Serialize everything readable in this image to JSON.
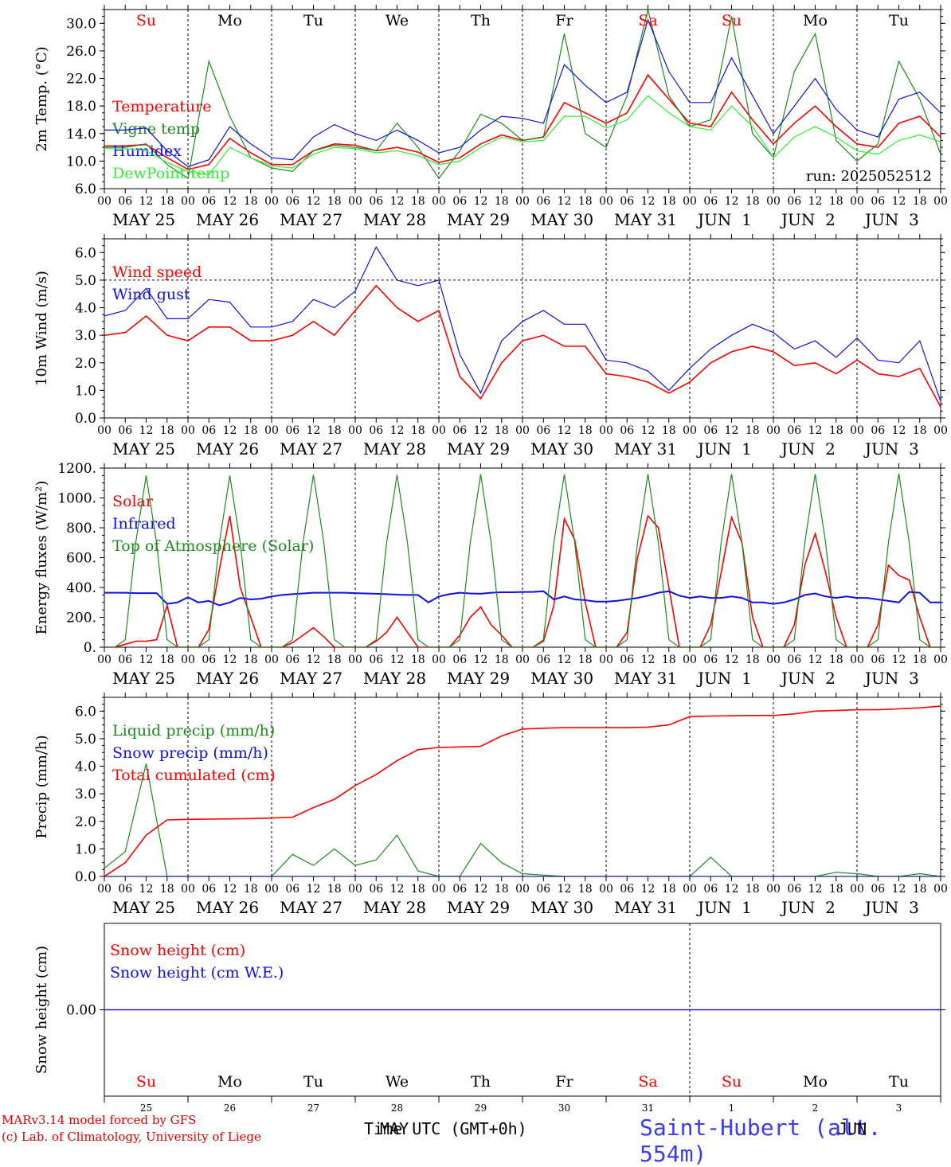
{
  "colors": {
    "red": "#ff0000",
    "darkgreen": "#1f8a1f",
    "blue": "#1010e6",
    "lightgreen": "#33ee33",
    "black": "#000000"
  },
  "days": {
    "weekday_top": [
      "Su",
      "Mo",
      "Tu",
      "We",
      "Th",
      "Fr",
      "Sa",
      "Su",
      "Mo",
      "Tu"
    ],
    "weekday_colors": [
      "red",
      "black",
      "black",
      "black",
      "black",
      "black",
      "red",
      "red",
      "black",
      "black"
    ],
    "date_labels": [
      "MAY 25",
      "MAY 26",
      "MAY 27",
      "MAY 28",
      "MAY 29",
      "MAY 30",
      "MAY 31",
      "JUN  1",
      "JUN  2",
      "JUN  3"
    ],
    "hour_ticks": [
      "00",
      "06",
      "12",
      "18"
    ],
    "hour_end": "00",
    "day_numbers": [
      "25",
      "26",
      "27",
      "28",
      "29",
      "30",
      "31",
      "1",
      "2",
      "3"
    ]
  },
  "chart_data": [
    {
      "type": "line",
      "ylabel": "2m Temp. (°C)",
      "ylim": [
        6.0,
        32.0
      ],
      "yticks": [
        "6.0",
        "10.0",
        "14.0",
        "18.0",
        "22.0",
        "26.0",
        "30.0"
      ],
      "run_label": "run: 2025052512",
      "x_hours": [
        0,
        6,
        12,
        18,
        24,
        30,
        36,
        42,
        48,
        54,
        60,
        66,
        72,
        78,
        84,
        90,
        96,
        102,
        108,
        114,
        120,
        126,
        132,
        138,
        144,
        150,
        156,
        162,
        168,
        174,
        180,
        186,
        192,
        198,
        204,
        210,
        216,
        222,
        228,
        234,
        240
      ],
      "series": [
        {
          "name": "Temperature",
          "color": "red",
          "values": [
            12.2,
            12.2,
            12.4,
            10.5,
            8.8,
            9.5,
            13.3,
            11.2,
            9.5,
            9.5,
            11.5,
            12.5,
            12.3,
            11.5,
            12.0,
            11.3,
            9.8,
            10.5,
            12.5,
            13.8,
            13.0,
            13.5,
            18.5,
            17.0,
            15.5,
            17.0,
            22.5,
            19.0,
            15.5,
            15.0,
            20.0,
            16.0,
            12.5,
            15.5,
            18.0,
            15.0,
            12.5,
            12.0,
            15.5,
            16.5,
            13.5
          ]
        },
        {
          "name": "Vigne temp",
          "color": "darkgreen",
          "values": [
            12.0,
            12.0,
            12.5,
            9.5,
            7.5,
            24.5,
            16.5,
            10.5,
            9.0,
            8.5,
            11.5,
            12.3,
            12.0,
            11.5,
            15.5,
            12.0,
            7.5,
            11.5,
            16.8,
            15.5,
            13.0,
            13.5,
            28.5,
            14.0,
            12.0,
            19.5,
            32.0,
            19.5,
            15.0,
            16.0,
            31.0,
            14.0,
            10.5,
            23.0,
            28.5,
            13.0,
            10.0,
            12.5,
            24.5,
            19.0,
            11.0
          ]
        },
        {
          "name": "Humidex",
          "color": "blue",
          "values": [
            14.5,
            14.5,
            14.8,
            11.5,
            9.2,
            10.2,
            15.0,
            12.5,
            10.5,
            10.2,
            13.5,
            15.3,
            14.0,
            13.0,
            14.5,
            13.0,
            11.2,
            12.0,
            14.5,
            16.5,
            16.2,
            15.5,
            24.0,
            21.0,
            18.5,
            20.0,
            30.5,
            23.0,
            18.5,
            18.5,
            25.0,
            19.5,
            14.0,
            18.0,
            22.0,
            17.5,
            14.5,
            13.5,
            19.0,
            20.0,
            17.0
          ]
        },
        {
          "name": "DewPoint temp",
          "color": "lightgreen",
          "values": [
            11.8,
            11.8,
            11.5,
            9.8,
            8.5,
            8.0,
            12.0,
            10.5,
            9.3,
            9.0,
            11.0,
            12.0,
            11.8,
            11.2,
            11.5,
            10.8,
            9.5,
            10.0,
            12.0,
            13.5,
            12.8,
            13.0,
            16.5,
            16.5,
            14.8,
            16.0,
            19.5,
            17.0,
            15.0,
            14.5,
            18.0,
            15.0,
            10.5,
            13.5,
            15.0,
            13.5,
            11.5,
            11.0,
            13.0,
            13.8,
            12.8
          ]
        }
      ]
    },
    {
      "type": "line",
      "ylabel": "10m Wind (m/s)",
      "ylim": [
        0.0,
        6.5
      ],
      "yticks": [
        "0.0",
        "1.0",
        "2.0",
        "3.0",
        "4.0",
        "5.0",
        "6.0"
      ],
      "x_hours": [
        0,
        6,
        12,
        18,
        24,
        30,
        36,
        42,
        48,
        54,
        60,
        66,
        72,
        78,
        84,
        90,
        96,
        102,
        108,
        114,
        120,
        126,
        132,
        138,
        144,
        150,
        156,
        162,
        168,
        174,
        180,
        186,
        192,
        198,
        204,
        210,
        216,
        222,
        228,
        234,
        240
      ],
      "series": [
        {
          "name": "Wind speed",
          "color": "red",
          "values": [
            3.0,
            3.1,
            3.7,
            3.0,
            2.8,
            3.3,
            3.3,
            2.8,
            2.8,
            3.0,
            3.5,
            3.0,
            3.9,
            4.8,
            4.0,
            3.5,
            3.9,
            1.5,
            0.7,
            2.0,
            2.8,
            3.0,
            2.6,
            2.6,
            1.6,
            1.5,
            1.3,
            0.9,
            1.3,
            2.0,
            2.4,
            2.6,
            2.4,
            1.9,
            2.0,
            1.6,
            2.1,
            1.6,
            1.5,
            1.8,
            0.4
          ]
        },
        {
          "name": "Wind gust",
          "color": "blue",
          "values": [
            3.7,
            3.9,
            4.7,
            3.6,
            3.6,
            4.3,
            4.2,
            3.3,
            3.3,
            3.5,
            4.3,
            4.0,
            4.6,
            6.2,
            5.0,
            4.8,
            5.0,
            2.3,
            0.9,
            2.8,
            3.5,
            3.9,
            3.4,
            3.4,
            2.1,
            2.0,
            1.7,
            1.0,
            1.8,
            2.5,
            3.0,
            3.4,
            3.1,
            2.5,
            2.8,
            2.2,
            2.9,
            2.1,
            2.0,
            2.8,
            0.6
          ]
        }
      ]
    },
    {
      "type": "line",
      "ylabel": "Energy fluxes (W/m²)",
      "ylim": [
        0,
        1200
      ],
      "yticks": [
        "0.",
        "200.",
        "400.",
        "600.",
        "800.",
        "1000.",
        "1200."
      ],
      "x_hours": [
        0,
        3,
        6,
        9,
        12,
        15,
        18,
        21,
        24,
        27,
        30,
        33,
        36,
        39,
        42,
        45,
        48,
        51,
        54,
        57,
        60,
        63,
        66,
        69,
        72,
        75,
        78,
        81,
        84,
        87,
        90,
        93,
        96,
        99,
        102,
        105,
        108,
        111,
        114,
        117,
        120,
        123,
        126,
        129,
        132,
        135,
        138,
        141,
        144,
        147,
        150,
        153,
        156,
        159,
        162,
        165,
        168,
        171,
        174,
        177,
        180,
        183,
        186,
        189,
        192,
        195,
        198,
        201,
        204,
        207,
        210,
        213,
        216,
        219,
        222,
        225,
        228,
        231,
        234,
        237,
        240
      ],
      "series": [
        {
          "name": "Solar",
          "color": "red",
          "values": [
            0,
            0,
            20,
            40,
            40,
            50,
            280,
            0,
            0,
            0,
            120,
            520,
            880,
            400,
            200,
            0,
            0,
            0,
            30,
            80,
            130,
            70,
            0,
            0,
            0,
            0,
            40,
            100,
            200,
            100,
            0,
            0,
            0,
            0,
            80,
            200,
            270,
            150,
            80,
            0,
            0,
            0,
            40,
            280,
            860,
            720,
            300,
            0,
            0,
            0,
            100,
            600,
            880,
            800,
            400,
            0,
            0,
            0,
            150,
            500,
            870,
            700,
            200,
            0,
            0,
            0,
            150,
            550,
            760,
            500,
            200,
            0,
            0,
            0,
            150,
            550,
            480,
            450,
            200,
            0,
            0
          ]
        },
        {
          "name": "Infrared",
          "color": "blue",
          "values": [
            365,
            365,
            365,
            362,
            362,
            362,
            290,
            300,
            335,
            300,
            310,
            280,
            300,
            330,
            320,
            325,
            340,
            350,
            355,
            360,
            365,
            365,
            365,
            365,
            362,
            360,
            358,
            355,
            352,
            350,
            350,
            300,
            340,
            355,
            365,
            360,
            358,
            365,
            368,
            368,
            370,
            370,
            375,
            320,
            340,
            320,
            315,
            305,
            305,
            310,
            320,
            330,
            345,
            365,
            375,
            345,
            330,
            340,
            330,
            330,
            340,
            330,
            300,
            300,
            290,
            300,
            320,
            350,
            360,
            340,
            330,
            340,
            330,
            330,
            320,
            310,
            300,
            370,
            365,
            300,
            300
          ]
        },
        {
          "name": "Top of Atmosphere (Solar)",
          "color": "darkgreen",
          "values": [
            0,
            0,
            50,
            700,
            1150,
            700,
            50,
            0,
            0,
            0,
            50,
            700,
            1150,
            700,
            50,
            0,
            0,
            0,
            50,
            700,
            1155,
            700,
            50,
            0,
            0,
            0,
            50,
            700,
            1155,
            700,
            50,
            0,
            0,
            0,
            50,
            700,
            1158,
            700,
            50,
            0,
            0,
            0,
            50,
            700,
            1158,
            700,
            50,
            0,
            0,
            0,
            50,
            700,
            1160,
            700,
            50,
            0,
            0,
            0,
            50,
            700,
            1160,
            700,
            50,
            0,
            0,
            0,
            50,
            700,
            1160,
            700,
            50,
            0,
            0,
            0,
            50,
            700,
            1163,
            700,
            50,
            0,
            0
          ]
        }
      ]
    },
    {
      "type": "line",
      "ylabel": "Precip (mm/h)",
      "ylim": [
        0.0,
        6.5
      ],
      "yticks": [
        "0.0",
        "1.0",
        "2.0",
        "3.0",
        "4.0",
        "5.0",
        "6.0"
      ],
      "x_hours": [
        0,
        6,
        12,
        18,
        24,
        30,
        36,
        42,
        48,
        54,
        60,
        66,
        72,
        78,
        84,
        90,
        96,
        102,
        108,
        114,
        120,
        126,
        132,
        138,
        144,
        150,
        156,
        162,
        168,
        174,
        180,
        186,
        192,
        198,
        204,
        210,
        216,
        222,
        228,
        234,
        240
      ],
      "series": [
        {
          "name": "Liquid precip (mm/h)",
          "color": "darkgreen",
          "values": [
            0.3,
            0.9,
            4.1,
            0.0,
            0.0,
            0.0,
            0.0,
            0.0,
            0.0,
            0.8,
            0.4,
            1.0,
            0.4,
            0.6,
            1.5,
            0.2,
            0.0,
            0.0,
            1.2,
            0.5,
            0.1,
            0.05,
            0.0,
            0.0,
            0.0,
            0.0,
            0.0,
            0.0,
            0.0,
            0.7,
            0.0,
            0.0,
            0.0,
            0.0,
            0.0,
            0.15,
            0.1,
            0.0,
            0.0,
            0.1,
            0.0
          ]
        },
        {
          "name": "Snow precip (mm/h)",
          "color": "blue",
          "values": [
            0,
            0,
            0,
            0,
            0,
            0,
            0,
            0,
            0,
            0,
            0,
            0,
            0,
            0,
            0,
            0,
            0,
            0,
            0,
            0,
            0,
            0,
            0,
            0,
            0,
            0,
            0,
            0,
            0,
            0,
            0,
            0,
            0,
            0,
            0,
            0,
            0,
            0,
            0,
            0,
            0
          ]
        },
        {
          "name": "Total cumulated (cm)",
          "color": "red",
          "values": [
            0.0,
            0.5,
            1.5,
            2.05,
            2.07,
            2.08,
            2.09,
            2.1,
            2.12,
            2.15,
            2.5,
            2.8,
            3.3,
            3.7,
            4.2,
            4.6,
            4.68,
            4.7,
            4.72,
            5.1,
            5.35,
            5.38,
            5.4,
            5.4,
            5.4,
            5.4,
            5.42,
            5.5,
            5.8,
            5.82,
            5.83,
            5.84,
            5.84,
            5.9,
            6.0,
            6.02,
            6.05,
            6.05,
            6.08,
            6.12,
            6.18
          ]
        }
      ]
    },
    {
      "type": "line",
      "ylabel": "Snow height (cm)",
      "yticks": [
        "0.00"
      ],
      "x_hours": [
        0,
        240
      ],
      "series": [
        {
          "name": "Snow height (cm)",
          "color": "red",
          "values": [
            0.0,
            0.0
          ]
        },
        {
          "name": "Snow height (cm W.E.)",
          "color": "blue",
          "values": [
            0.0,
            0.0
          ]
        }
      ]
    }
  ],
  "footer": {
    "model_line": "MARv3.14 model forced by GFS",
    "lab_line": "(c) Lab. of Climatology, University of Liege",
    "time_label": "Time UTC (GMT+0h)",
    "month_label": "MAY",
    "month_label_2": "JUN",
    "station": "Saint-Hubert (alt. 554m)"
  }
}
